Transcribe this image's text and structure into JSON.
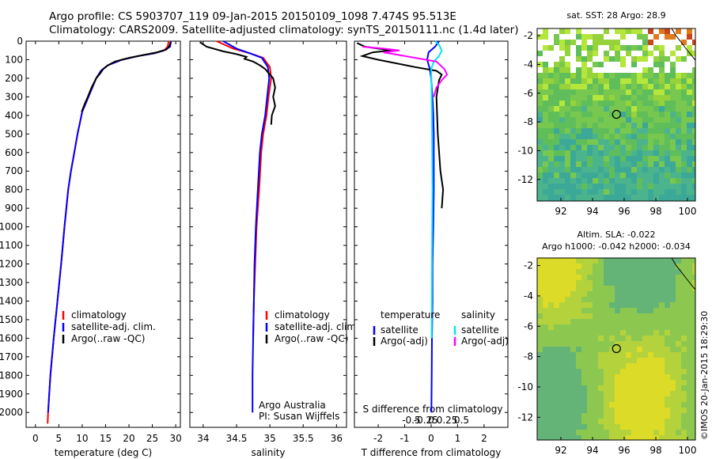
{
  "header": {
    "line1": "Argo profile: CS 5903707_119 09-Jan-2015 20150109_1098 7.474S 95.513E",
    "line2": "Climatology: CARS2009. Satellite-adjusted climatology: synTS_20150111.nc (1.4d later)"
  },
  "side_label": "©IMOS 20-Jan-2015 18:29:30",
  "colors": {
    "climatology": "#ff0000",
    "satellite": "#0000ff",
    "argo": "#000000",
    "satellite_s": "#00e5ee",
    "argo_s": "#ff00ff"
  },
  "chart_data": [
    {
      "type": "line",
      "xlabel": "temperature (deg C)",
      "ylabel": "",
      "xlim": [
        -2,
        31
      ],
      "ylim": [
        2080,
        0
      ],
      "y_reversed": true,
      "xticks": [
        0,
        5,
        10,
        15,
        20,
        25,
        30
      ],
      "yticks": [
        0,
        100,
        200,
        300,
        400,
        500,
        600,
        700,
        800,
        900,
        1000,
        1100,
        1200,
        1300,
        1400,
        1500,
        1600,
        1700,
        1800,
        1900,
        2000
      ],
      "legend": [
        "climatology",
        "satellite-adj. clim.",
        "Argo(..raw -QC)"
      ],
      "legend_position": "lower-center",
      "series": [
        {
          "name": "climatology",
          "color": "#ff0000",
          "x": [
            28.5,
            28.3,
            27.5,
            25.5,
            22,
            18.5,
            15.5,
            14,
            13,
            12,
            11,
            10,
            9.5,
            9,
            8.3,
            7.6,
            7,
            6.2,
            5.5,
            4.7,
            3.9,
            3.2,
            2.7,
            2.6
          ],
          "y": [
            0,
            30,
            50,
            65,
            80,
            100,
            130,
            160,
            200,
            260,
            320,
            380,
            440,
            500,
            600,
            700,
            800,
            1000,
            1200,
            1400,
            1600,
            1800,
            2000,
            2060
          ]
        },
        {
          "name": "satellite-adj. clim.",
          "color": "#0000ff",
          "x": [
            29,
            28.8,
            27.5,
            25.5,
            22,
            18.5,
            15.5,
            14,
            13,
            12,
            11,
            10,
            9.5,
            9,
            8.3,
            7.6,
            7,
            6.2,
            5.5,
            4.7,
            3.9,
            3.2,
            2.7
          ],
          "y": [
            0,
            30,
            50,
            65,
            80,
            100,
            130,
            160,
            200,
            260,
            320,
            380,
            440,
            500,
            600,
            700,
            800,
            1000,
            1200,
            1400,
            1600,
            1800,
            2000
          ]
        },
        {
          "name": "Argo(..raw -QC)",
          "color": "#000000",
          "x": [
            28.9,
            28.7,
            28,
            26,
            23,
            20,
            17,
            15.5,
            14.5,
            13.8,
            13,
            12,
            11.2,
            10.5,
            9.9
          ],
          "y": [
            5,
            25,
            45,
            60,
            75,
            90,
            110,
            130,
            150,
            175,
            200,
            250,
            300,
            340,
            380
          ]
        }
      ]
    },
    {
      "type": "line",
      "xlabel": "salinity",
      "ylabel": "",
      "xlim": [
        33.8,
        36.15
      ],
      "ylim": [
        2080,
        0
      ],
      "y_reversed": true,
      "xticks": [
        34,
        34.5,
        35,
        35.5,
        36
      ],
      "legend": [
        "climatology",
        "satellite-adj. clim.",
        "Argo(..raw -QC)"
      ],
      "legend_position": "lower-center",
      "annotations": [
        "Argo Australia",
        "PI: Susan Wijffels"
      ],
      "series": [
        {
          "name": "climatology",
          "color": "#ff0000",
          "x": [
            34.2,
            34.45,
            34.7,
            34.9,
            35.0,
            35.02,
            34.98,
            34.95,
            34.9,
            34.87,
            34.84,
            34.8,
            34.78,
            34.76,
            34.75
          ],
          "y": [
            0,
            40,
            65,
            90,
            140,
            200,
            300,
            400,
            500,
            600,
            800,
            1000,
            1200,
            1400,
            1600
          ]
        },
        {
          "name": "satellite-adj. clim.",
          "color": "#0000ff",
          "x": [
            34.3,
            34.5,
            34.7,
            34.88,
            34.97,
            34.99,
            34.96,
            34.93,
            34.88,
            34.85,
            34.82,
            34.79,
            34.77,
            34.76,
            34.75,
            34.74,
            34.74
          ],
          "y": [
            0,
            40,
            65,
            90,
            140,
            200,
            300,
            400,
            500,
            600,
            800,
            1000,
            1200,
            1400,
            1600,
            1800,
            2000
          ]
        },
        {
          "name": "Argo(..raw -QC)",
          "color": "#000000",
          "x": [
            33.95,
            34.05,
            34.3,
            34.5,
            34.65,
            34.62,
            34.75,
            34.85,
            34.93,
            35.0,
            35.05,
            35.08,
            35.05,
            35.08,
            35.03,
            35.02
          ],
          "y": [
            5,
            30,
            55,
            70,
            85,
            95,
            110,
            130,
            150,
            180,
            200,
            250,
            300,
            350,
            400,
            450
          ]
        }
      ]
    },
    {
      "type": "line",
      "xlabel": "T difference from climatology",
      "x2label": "S difference from climatology",
      "ylabel": "",
      "xlim": [
        -2.9,
        2.9
      ],
      "ylim": [
        2080,
        0
      ],
      "y_reversed": true,
      "xticks": [
        -2,
        -1,
        0,
        1,
        2
      ],
      "x2ticks": [
        "-0.5",
        "-0.25",
        "0",
        "0.25",
        "0.5"
      ],
      "legend_groups": [
        "temperature",
        "salinity"
      ],
      "legend": [
        "satellite",
        "Argo(-adj)",
        "satellite",
        "Argo(-adj)"
      ],
      "legend_position": "lower-center",
      "series": [
        {
          "name": "satellite",
          "group": "temperature",
          "color": "#0000ff",
          "x": [
            0.3,
            0.15,
            -0.1,
            -0.15,
            -0.05,
            0,
            0.05,
            0.08,
            0.1,
            0.1,
            0.1,
            0.08,
            0.05,
            0.05,
            0.03,
            0.02,
            0.01
          ],
          "y": [
            0,
            30,
            60,
            100,
            150,
            200,
            300,
            400,
            500,
            600,
            800,
            1000,
            1200,
            1400,
            1600,
            1800,
            2000
          ]
        },
        {
          "name": "Argo(-adj)",
          "group": "temperature",
          "color": "#000000",
          "x": [
            -2.8,
            -2.5,
            -1.5,
            -2.2,
            -2.6,
            -2.0,
            -0.6,
            0.2,
            0.4,
            0.3,
            0.2,
            0.25,
            0.35,
            0.45,
            0.4
          ],
          "y": [
            10,
            30,
            50,
            60,
            80,
            100,
            140,
            160,
            180,
            210,
            300,
            500,
            700,
            800,
            900
          ]
        },
        {
          "name": "satellite",
          "group": "salinity",
          "color": "#00e5ee",
          "x": [
            0.15,
            0.3,
            0.4,
            0.3,
            0.1,
            0,
            0.03,
            0.05,
            0.03,
            0.02
          ],
          "y": [
            0,
            20,
            50,
            80,
            110,
            150,
            400,
            800,
            1200,
            1600
          ]
        },
        {
          "name": "Argo(-adj)",
          "group": "salinity",
          "color": "#ff00ff",
          "x": [
            -2.6,
            -1.8,
            -1.2,
            -1.8,
            -1.2,
            -0.6,
            0.2,
            0.5,
            0.6,
            0.4,
            0.2,
            0.1
          ],
          "y": [
            30,
            40,
            50,
            60,
            75,
            90,
            110,
            150,
            180,
            210,
            250,
            300
          ]
        }
      ]
    },
    {
      "type": "heatmap",
      "title": "sat. SST: 28 Argo: 28.9",
      "xlim": [
        90.5,
        100.5
      ],
      "ylim": [
        -13.5,
        -1.5
      ],
      "xticks": [
        92,
        94,
        96,
        98,
        100
      ],
      "yticks": [
        -2,
        -4,
        -6,
        -8,
        -10,
        -12
      ],
      "marker": {
        "lon": 95.513,
        "lat": -7.474
      }
    },
    {
      "type": "heatmap",
      "title": "Altim. SLA: -0.022",
      "subtitle": "Argo h1000: -0.042 h2000: -0.034",
      "xlim": [
        90.5,
        100.5
      ],
      "ylim": [
        -13.5,
        -1.5
      ],
      "xticks": [
        92,
        94,
        96,
        98,
        100
      ],
      "yticks": [
        -2,
        -4,
        -6,
        -8,
        -10,
        -12
      ],
      "marker": {
        "lon": 95.513,
        "lat": -7.474
      }
    }
  ]
}
